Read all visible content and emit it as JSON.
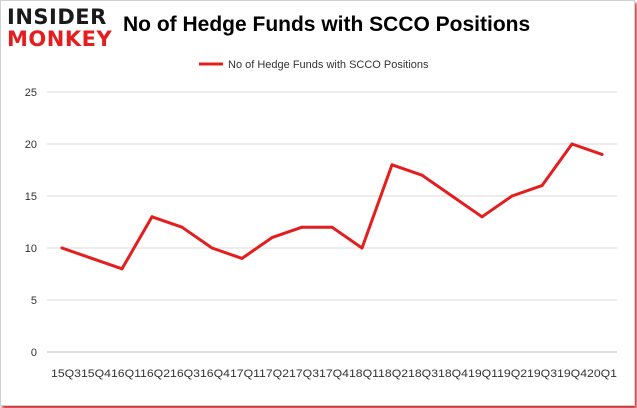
{
  "logo": {
    "line1": "INSIDER",
    "line2": "MONKEY"
  },
  "chart_data": {
    "type": "line",
    "title": "No of Hedge Funds with SCCO Positions",
    "xlabel": "",
    "ylabel": "",
    "x_tick_text": "15Q315Q416Q116Q216Q316Q417Q117Q217Q317Q418Q118Q218Q318Q419Q119Q219Q319Q420Q1",
    "categories": [
      "15Q3",
      "15Q4",
      "16Q1",
      "16Q2",
      "16Q3",
      "16Q4",
      "17Q1",
      "17Q2",
      "17Q3",
      "17Q4",
      "18Q1",
      "18Q2",
      "18Q3",
      "18Q4",
      "19Q1",
      "19Q2",
      "19Q3",
      "19Q4",
      "20Q1"
    ],
    "series": [
      {
        "name": "No of Hedge Funds with SCCO Positions",
        "color": "#e41e1e",
        "values": [
          10,
          9,
          8,
          13,
          12,
          10,
          9,
          11,
          12,
          12,
          10,
          18,
          17,
          15,
          13,
          15,
          16,
          20,
          19
        ]
      }
    ],
    "ylim": [
      0,
      25
    ],
    "yticks": [
      0,
      5,
      10,
      15,
      20,
      25
    ],
    "grid": true,
    "legend": "top-center"
  }
}
